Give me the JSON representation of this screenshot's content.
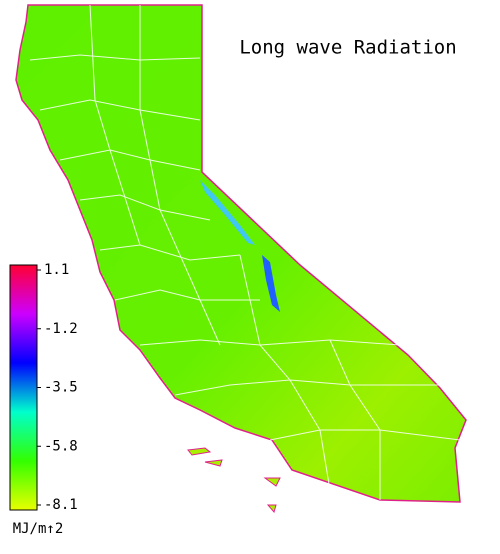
{
  "title": "Long wave Radiation",
  "colorbar": {
    "range": [
      -8.1,
      1.1
    ],
    "ticks": [
      1.1,
      -1.2,
      -3.5,
      -5.8,
      -8.1
    ],
    "unit": "MJ/m↑2",
    "colors": [
      "#e8ff00",
      "#33ff00",
      "#00ffcc",
      "#0000ff",
      "#cc00ff",
      "#ff0033"
    ]
  }
}
